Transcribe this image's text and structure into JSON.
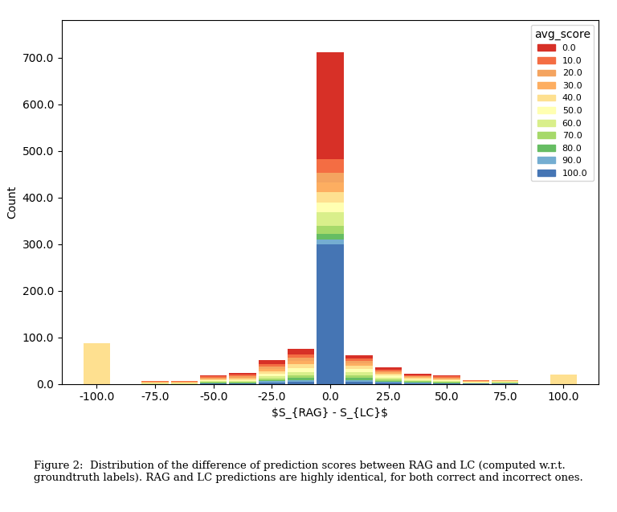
{
  "chart_data": {
    "type": "bar",
    "stacked": true,
    "x_label": "$S_{RAG} - S_{LC}$",
    "y_label": "Count",
    "caption": "Figure 2:  Distribution of the difference of prediction scores between RAG and LC (computed w.r.t.\ngroundtruth labels). RAG and LC predictions are highly identical, for both correct and incorrect ones.",
    "x": [
      -100,
      -87.5,
      -75,
      -62.5,
      -50,
      -37.5,
      -25,
      -12.5,
      0,
      12.5,
      25,
      37.5,
      50,
      62.5,
      75,
      87.5,
      100
    ],
    "xlim": [
      -115,
      115
    ],
    "xticks": [
      {
        "value": -100,
        "label": "-100.0"
      },
      {
        "value": -75,
        "label": "-75.0"
      },
      {
        "value": -50,
        "label": "-50.0"
      },
      {
        "value": -25,
        "label": "-25.0"
      },
      {
        "value": 0,
        "label": "0.0"
      },
      {
        "value": 25,
        "label": "25.0"
      },
      {
        "value": 50,
        "label": "50.0"
      },
      {
        "value": 75,
        "label": "75.0"
      },
      {
        "value": 100,
        "label": "100.0"
      }
    ],
    "ylim": [
      0,
      780
    ],
    "yticks": [
      {
        "value": 0,
        "label": "0.0"
      },
      {
        "value": 100,
        "label": "100.0"
      },
      {
        "value": 200,
        "label": "200.0"
      },
      {
        "value": 300,
        "label": "300.0"
      },
      {
        "value": 400,
        "label": "400.0"
      },
      {
        "value": 500,
        "label": "500.0"
      },
      {
        "value": 600,
        "label": "600.0"
      },
      {
        "value": 700,
        "label": "700.0"
      }
    ],
    "legend": "upper right",
    "legend_title": "avg_score",
    "series": [
      {
        "name": "0.0",
        "color": "#d73027",
        "values": [
          0,
          0,
          0,
          1,
          2,
          4,
          8,
          12,
          230,
          8,
          5,
          3,
          2,
          1,
          0,
          0,
          0
        ]
      },
      {
        "name": "10.0",
        "color": "#f46d43",
        "values": [
          0,
          0,
          1,
          1,
          2,
          3,
          5,
          7,
          28,
          5,
          3,
          2,
          2,
          1,
          0,
          0,
          0
        ]
      },
      {
        "name": "20.0",
        "color": "#f4a460",
        "values": [
          0,
          0,
          1,
          1,
          2,
          3,
          5,
          7,
          22,
          5,
          3,
          2,
          2,
          1,
          1,
          0,
          0
        ]
      },
      {
        "name": "30.0",
        "color": "#fdae61",
        "values": [
          0,
          0,
          1,
          1,
          2,
          3,
          5,
          7,
          20,
          5,
          3,
          2,
          2,
          1,
          1,
          0,
          0
        ]
      },
      {
        "name": "40.0",
        "color": "#fee090",
        "values": [
          88,
          0,
          1,
          1,
          2,
          3,
          6,
          8,
          22,
          7,
          4,
          3,
          2,
          1,
          1,
          0,
          20
        ]
      },
      {
        "name": "50.0",
        "color": "#ffffb2",
        "values": [
          0,
          0,
          1,
          1,
          2,
          2,
          5,
          8,
          22,
          7,
          4,
          2,
          2,
          1,
          1,
          0,
          0
        ]
      },
      {
        "name": "60.0",
        "color": "#d9ef8b",
        "values": [
          0,
          0,
          1,
          1,
          2,
          2,
          5,
          8,
          28,
          7,
          4,
          2,
          2,
          1,
          1,
          0,
          0
        ]
      },
      {
        "name": "70.0",
        "color": "#a6d96a",
        "values": [
          0,
          0,
          0,
          0,
          1,
          1,
          3,
          5,
          18,
          5,
          3,
          2,
          1,
          1,
          1,
          0,
          0
        ]
      },
      {
        "name": "80.0",
        "color": "#66bd63",
        "values": [
          0,
          0,
          0,
          0,
          1,
          1,
          3,
          4,
          12,
          4,
          2,
          1,
          1,
          0,
          1,
          0,
          0
        ]
      },
      {
        "name": "90.0",
        "color": "#74add1",
        "values": [
          0,
          0,
          0,
          0,
          1,
          1,
          3,
          4,
          10,
          4,
          2,
          1,
          1,
          0,
          0,
          0,
          0
        ]
      },
      {
        "name": "100.0",
        "color": "#4575b4",
        "values": [
          0,
          0,
          0,
          0,
          1,
          1,
          3,
          5,
          300,
          5,
          3,
          2,
          1,
          1,
          1,
          0,
          0
        ]
      }
    ]
  }
}
